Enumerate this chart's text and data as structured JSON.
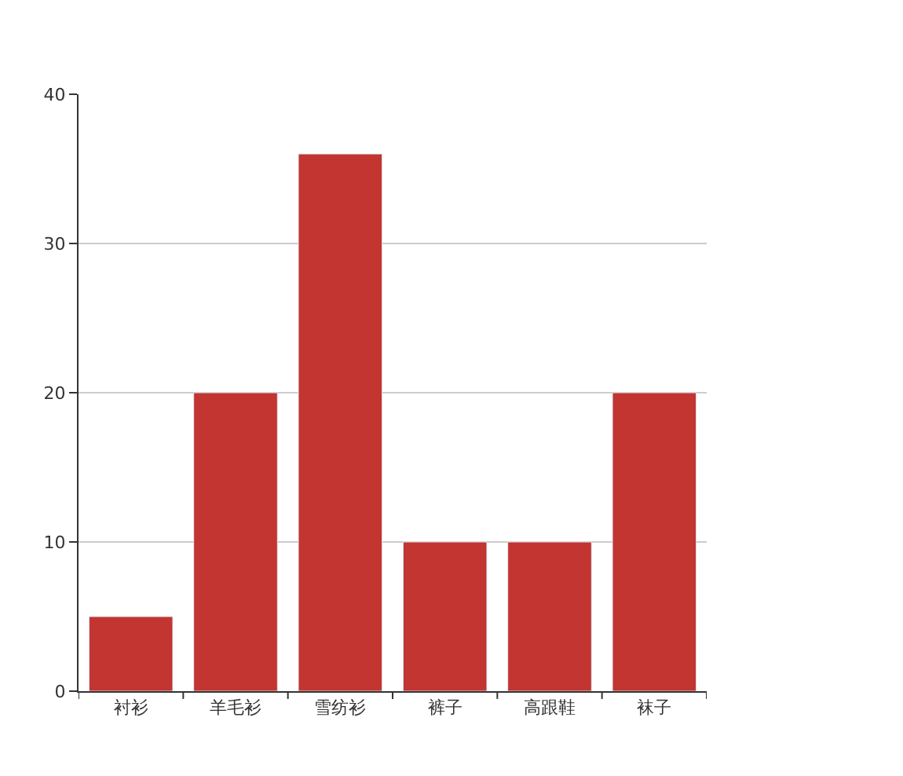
{
  "chart_data": {
    "type": "bar",
    "categories": [
      "衬衫",
      "羊毛衫",
      "雪纺衫",
      "裤子",
      "高跟鞋",
      "袜子"
    ],
    "series": [
      {
        "color": "#c23531",
        "values": [
          5,
          20,
          36,
          10,
          10,
          20
        ]
      }
    ],
    "ylim": [
      0,
      40
    ],
    "yticks": [
      0,
      10,
      20,
      30,
      40
    ],
    "grid": "y"
  }
}
